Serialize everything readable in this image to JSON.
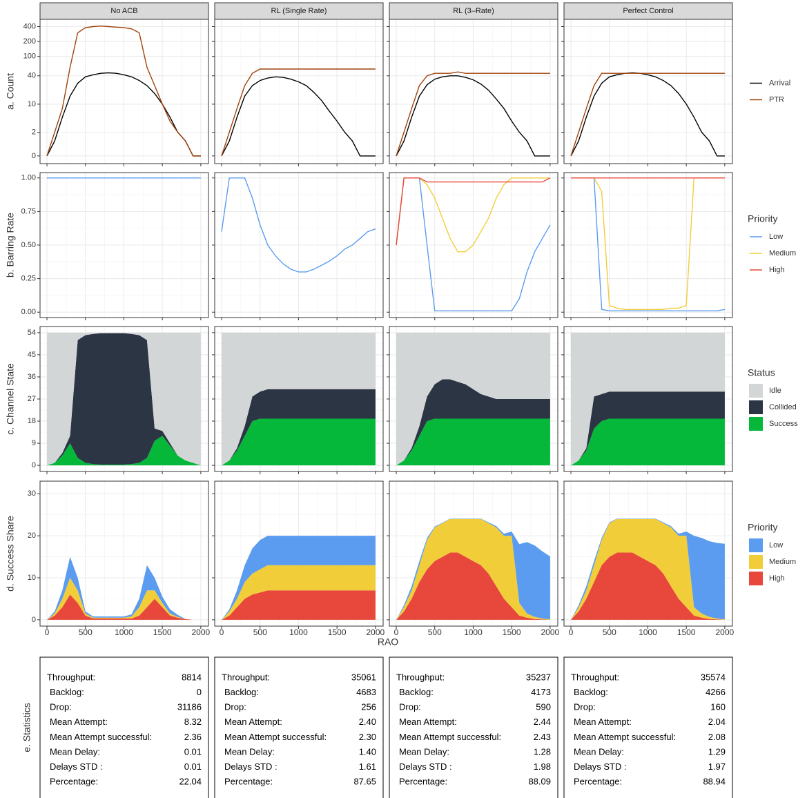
{
  "facets": [
    "No ACB",
    "RL (Single Rate)",
    "RL (3–Rate)",
    "Perfect Control"
  ],
  "x_label": "RAO",
  "x": [
    0,
    100,
    200,
    300,
    400,
    500,
    600,
    700,
    800,
    900,
    1000,
    1100,
    1200,
    1300,
    1400,
    1500,
    1600,
    1700,
    1800,
    1900,
    2000
  ],
  "xlim": [
    -90,
    2100
  ],
  "xticks": [
    0,
    500,
    1000,
    1500,
    2000
  ],
  "chart_data": [
    {
      "type": "line",
      "y_label": "a. Count",
      "scale": "log1p",
      "ylim": [
        -0.3,
        560
      ],
      "yticks": [
        0,
        2,
        10,
        40,
        100,
        200,
        400
      ],
      "series": [
        {
          "name": "Arrival",
          "color": "#000000"
        },
        {
          "name": "PTR",
          "color": "#a0420a"
        }
      ],
      "panels": [
        [
          [
            0,
            1,
            5,
            15,
            28,
            38,
            42,
            45,
            46,
            45,
            42,
            38,
            32,
            25,
            17,
            10,
            5,
            2,
            1,
            0,
            0
          ],
          [
            0,
            2,
            8,
            60,
            300,
            380,
            400,
            410,
            400,
            390,
            380,
            360,
            300,
            60,
            25,
            10,
            4,
            2,
            1,
            0,
            0
          ]
        ],
        [
          [
            0,
            1,
            5,
            15,
            25,
            32,
            36,
            38,
            37,
            34,
            30,
            25,
            18,
            12,
            7,
            4,
            2,
            1,
            0,
            0,
            0
          ],
          [
            0,
            2,
            8,
            25,
            45,
            55,
            55,
            55,
            55,
            55,
            55,
            55,
            55,
            55,
            55,
            55,
            55,
            55,
            55,
            55,
            55
          ]
        ],
        [
          [
            0,
            1,
            5,
            15,
            26,
            34,
            38,
            40,
            40,
            37,
            33,
            27,
            20,
            13,
            8,
            4,
            2,
            1,
            0,
            0,
            0
          ],
          [
            0,
            2,
            8,
            25,
            40,
            45,
            45,
            45,
            48,
            45,
            45,
            45,
            45,
            45,
            45,
            45,
            45,
            45,
            45,
            45,
            45
          ]
        ],
        [
          [
            0,
            1,
            5,
            15,
            28,
            38,
            42,
            45,
            46,
            45,
            42,
            38,
            32,
            25,
            17,
            10,
            5,
            2,
            1,
            0,
            0
          ],
          [
            0,
            2,
            8,
            25,
            45,
            45,
            45,
            45,
            45,
            45,
            45,
            45,
            45,
            45,
            45,
            45,
            45,
            45,
            45,
            45,
            45
          ]
        ]
      ]
    },
    {
      "type": "line",
      "y_label": "b. Barring Rate",
      "legend_title": "Priority",
      "ylim": [
        -0.04,
        1.04
      ],
      "yticks": [
        {
          "value": 0,
          "label": "0.00"
        },
        {
          "value": 0.25,
          "label": "0.25"
        },
        {
          "value": 0.5,
          "label": "0.50"
        },
        {
          "value": 0.75,
          "label": "0.75"
        },
        {
          "value": 1,
          "label": "1.00"
        }
      ],
      "series": [
        {
          "name": "Low",
          "color": "#5b9cf0"
        },
        {
          "name": "Medium",
          "color": "#f2cd3a"
        },
        {
          "name": "High",
          "color": "#e8473b"
        }
      ],
      "panels": [
        [
          [
            1,
            1,
            1,
            1,
            1,
            1,
            1,
            1,
            1,
            1,
            1,
            1,
            1,
            1,
            1,
            1,
            1,
            1,
            1,
            1,
            1
          ]
        ],
        [
          [
            0.6,
            1,
            1,
            1,
            0.85,
            0.65,
            0.5,
            0.42,
            0.36,
            0.32,
            0.3,
            0.3,
            0.32,
            0.35,
            0.38,
            0.42,
            0.47,
            0.5,
            0.55,
            0.6,
            0.62
          ]
        ],
        [
          [
            0.5,
            1,
            1,
            1,
            0.5,
            0.01,
            0.01,
            0.01,
            0.01,
            0.01,
            0.01,
            0.01,
            0.01,
            0.01,
            0.01,
            0.01,
            0.1,
            0.3,
            0.45,
            0.55,
            0.65
          ],
          [
            0.5,
            1,
            1,
            1,
            0.95,
            0.85,
            0.7,
            0.55,
            0.45,
            0.45,
            0.5,
            0.6,
            0.7,
            0.85,
            0.95,
            1,
            1,
            1,
            1,
            1,
            1
          ],
          [
            0.5,
            1,
            1,
            1,
            0.97,
            0.97,
            0.97,
            0.97,
            0.97,
            0.97,
            0.97,
            0.97,
            0.97,
            0.97,
            0.97,
            0.97,
            0.97,
            0.97,
            0.97,
            0.97,
            1
          ]
        ],
        [
          [
            1,
            1,
            1,
            1,
            0.02,
            0.01,
            0.01,
            0.01,
            0.01,
            0.01,
            0.01,
            0.01,
            0.01,
            0.01,
            0.01,
            0.01,
            0.01,
            0.01,
            0.01,
            0.01,
            0.02
          ],
          [
            1,
            1,
            1,
            1,
            0.9,
            0.05,
            0.03,
            0.02,
            0.02,
            0.02,
            0.02,
            0.02,
            0.02,
            0.03,
            0.03,
            0.05,
            1,
            1,
            1,
            1,
            1
          ],
          [
            1,
            1,
            1,
            1,
            1,
            1,
            1,
            1,
            1,
            1,
            1,
            1,
            1,
            1,
            1,
            1,
            1,
            1,
            1,
            1,
            1
          ]
        ]
      ]
    },
    {
      "type": "area",
      "y_label": "c. Channel State",
      "legend_title": "Status",
      "ylim": [
        -2.5,
        56.5
      ],
      "yticks": [
        0,
        9,
        18,
        27,
        36,
        45,
        54
      ],
      "series": [
        {
          "name": "Idle",
          "color": "#d3d6d6"
        },
        {
          "name": "Collided",
          "color": "#2b3544"
        },
        {
          "name": "Success",
          "color": "#06b83a"
        }
      ],
      "panels": [
        [
          [
            54,
            53,
            49,
            42,
            3,
            1,
            0.5,
            0.2,
            0.2,
            0.2,
            0.2,
            0.5,
            1,
            3,
            39,
            40,
            45,
            50,
            52,
            53,
            54
          ],
          [
            0,
            0,
            1,
            3,
            48,
            52,
            53,
            53.5,
            53.5,
            53.5,
            53.5,
            53,
            52,
            48,
            5,
            2,
            1,
            0,
            0,
            0,
            0
          ],
          [
            0,
            1,
            4,
            9,
            3,
            1,
            0.5,
            0.3,
            0.3,
            0.3,
            0.3,
            0.5,
            1,
            3,
            10,
            12,
            8,
            4,
            2,
            1,
            0
          ]
        ],
        [
          [
            54,
            52,
            47,
            38,
            26,
            24,
            23,
            23,
            23,
            23,
            23,
            23,
            23,
            23,
            23,
            23,
            23,
            23,
            23,
            23,
            23
          ],
          [
            0,
            0,
            1,
            4,
            10,
            11,
            12,
            12,
            12,
            12,
            12,
            12,
            12,
            12,
            12,
            12,
            12,
            12,
            12,
            12,
            12
          ],
          [
            0,
            2,
            6,
            12,
            18,
            19,
            19,
            19,
            19,
            19,
            19,
            19,
            19,
            19,
            19,
            19,
            19,
            19,
            19,
            19,
            19
          ]
        ],
        [
          [
            54,
            52,
            47,
            38,
            26,
            21,
            19,
            19,
            20,
            21,
            23,
            25,
            26,
            27,
            27,
            27,
            27,
            27,
            27,
            27,
            27
          ],
          [
            0,
            0,
            1,
            4,
            10,
            14,
            16,
            16,
            15,
            14,
            12,
            10,
            9,
            8,
            8,
            8,
            8,
            8,
            8,
            8,
            8
          ],
          [
            0,
            2,
            6,
            12,
            18,
            19,
            19,
            19,
            19,
            19,
            19,
            19,
            19,
            19,
            19,
            19,
            19,
            19,
            19,
            19,
            19
          ]
        ],
        [
          [
            54,
            52,
            47,
            26,
            25,
            24,
            24,
            24,
            24,
            24,
            24,
            24,
            24,
            24,
            24,
            24,
            24,
            24,
            24,
            24,
            24
          ],
          [
            0,
            0,
            1,
            13,
            11,
            11,
            11,
            11,
            11,
            11,
            11,
            11,
            11,
            11,
            11,
            11,
            11,
            11,
            11,
            11,
            11
          ],
          [
            0,
            2,
            6,
            15,
            18,
            19,
            19,
            19,
            19,
            19,
            19,
            19,
            19,
            19,
            19,
            19,
            19,
            19,
            19,
            19,
            19
          ]
        ]
      ]
    },
    {
      "type": "area",
      "y_label": "d. Success Share",
      "legend_title": "Priority",
      "ylim": [
        -1.5,
        33
      ],
      "yticks": [
        0,
        10,
        20,
        30
      ],
      "series": [
        {
          "name": "Low",
          "color": "#5b9cf0"
        },
        {
          "name": "Medium",
          "color": "#f2cd3a"
        },
        {
          "name": "High",
          "color": "#e8473b"
        }
      ],
      "panels": [
        [
          [
            0,
            0.5,
            2,
            5,
            3,
            0.5,
            0.3,
            0.3,
            0.3,
            0.3,
            0.3,
            0.5,
            2,
            6,
            3,
            1.5,
            1,
            0.5,
            0,
            0,
            0
          ],
          [
            0,
            0.5,
            2,
            4,
            3,
            0.5,
            0.2,
            0.2,
            0.2,
            0.2,
            0.2,
            0.5,
            2,
            4,
            2,
            1,
            0.5,
            0.2,
            0,
            0,
            0
          ],
          [
            0,
            1,
            3,
            6,
            4,
            1,
            0.3,
            0.3,
            0.3,
            0.3,
            0.3,
            0.3,
            1,
            3,
            5,
            3,
            1,
            0.5,
            0.2,
            0,
            0
          ]
        ],
        [
          [
            0,
            0.5,
            2,
            4,
            6,
            7,
            7,
            7,
            7,
            7,
            7,
            7,
            7,
            7,
            7,
            7,
            7,
            7,
            7,
            7,
            7
          ],
          [
            0,
            1,
            2,
            4,
            5,
            5.5,
            6,
            6,
            6,
            6,
            6,
            6,
            6,
            6,
            6,
            6,
            6,
            6,
            6,
            6,
            6
          ],
          [
            0,
            1,
            3,
            5,
            6,
            6.5,
            7,
            7,
            7,
            7,
            7,
            7,
            7,
            7,
            7,
            7,
            7,
            7,
            7,
            7,
            7
          ]
        ],
        [
          [
            0,
            0.5,
            1,
            1,
            0.5,
            0.2,
            0.1,
            0.1,
            0.1,
            0.1,
            0.1,
            0.1,
            0.2,
            0.3,
            0.5,
            1,
            14,
            17,
            17,
            16,
            15
          ],
          [
            0,
            1,
            2,
            4,
            7,
            8,
            8,
            8,
            8,
            9,
            10,
            11,
            12,
            14,
            15,
            17,
            3,
            1,
            0.5,
            0.2,
            0.1
          ],
          [
            0,
            2,
            5,
            9,
            12,
            14,
            15,
            16,
            16,
            15,
            14,
            13,
            11,
            8,
            5,
            3,
            1,
            0.5,
            0.2,
            0.1,
            0
          ]
        ],
        [
          [
            0,
            0.5,
            1,
            1,
            0.5,
            0.2,
            0.1,
            0.1,
            0.1,
            0.1,
            0.1,
            0.1,
            0.2,
            0.3,
            0.5,
            1,
            17,
            18,
            18,
            18,
            18
          ],
          [
            0,
            1,
            2,
            4,
            6,
            8,
            8,
            8,
            8,
            9,
            10,
            11,
            12,
            14,
            15,
            17,
            2,
            1,
            0.5,
            0.2,
            0.1
          ],
          [
            0,
            2,
            5,
            9,
            13,
            15,
            16,
            16,
            16,
            15,
            14,
            13,
            11,
            8,
            5,
            3,
            1,
            0.5,
            0.2,
            0.1,
            0
          ]
        ]
      ]
    }
  ],
  "statistics": {
    "label": "e. Statistics",
    "row_labels": [
      "Throughput:",
      "Backlog:",
      "Drop:",
      "Mean Attempt:",
      "Mean Attempt successful:",
      "Mean Delay:",
      "Delays STD :",
      "Percentage:"
    ],
    "columns": [
      [
        "8814",
        "0",
        "31186",
        "8.32",
        "2.36",
        "0.01",
        "0.01",
        "22.04"
      ],
      [
        "35061",
        "4683",
        "256",
        "2.40",
        "2.30",
        "1.40",
        "1.61",
        "87.65"
      ],
      [
        "35237",
        "4173",
        "590",
        "2.44",
        "2.43",
        "1.28",
        "1.98",
        "88.09"
      ],
      [
        "35574",
        "4266",
        "160",
        "2.04",
        "2.08",
        "1.29",
        "1.97",
        "88.94"
      ]
    ]
  }
}
